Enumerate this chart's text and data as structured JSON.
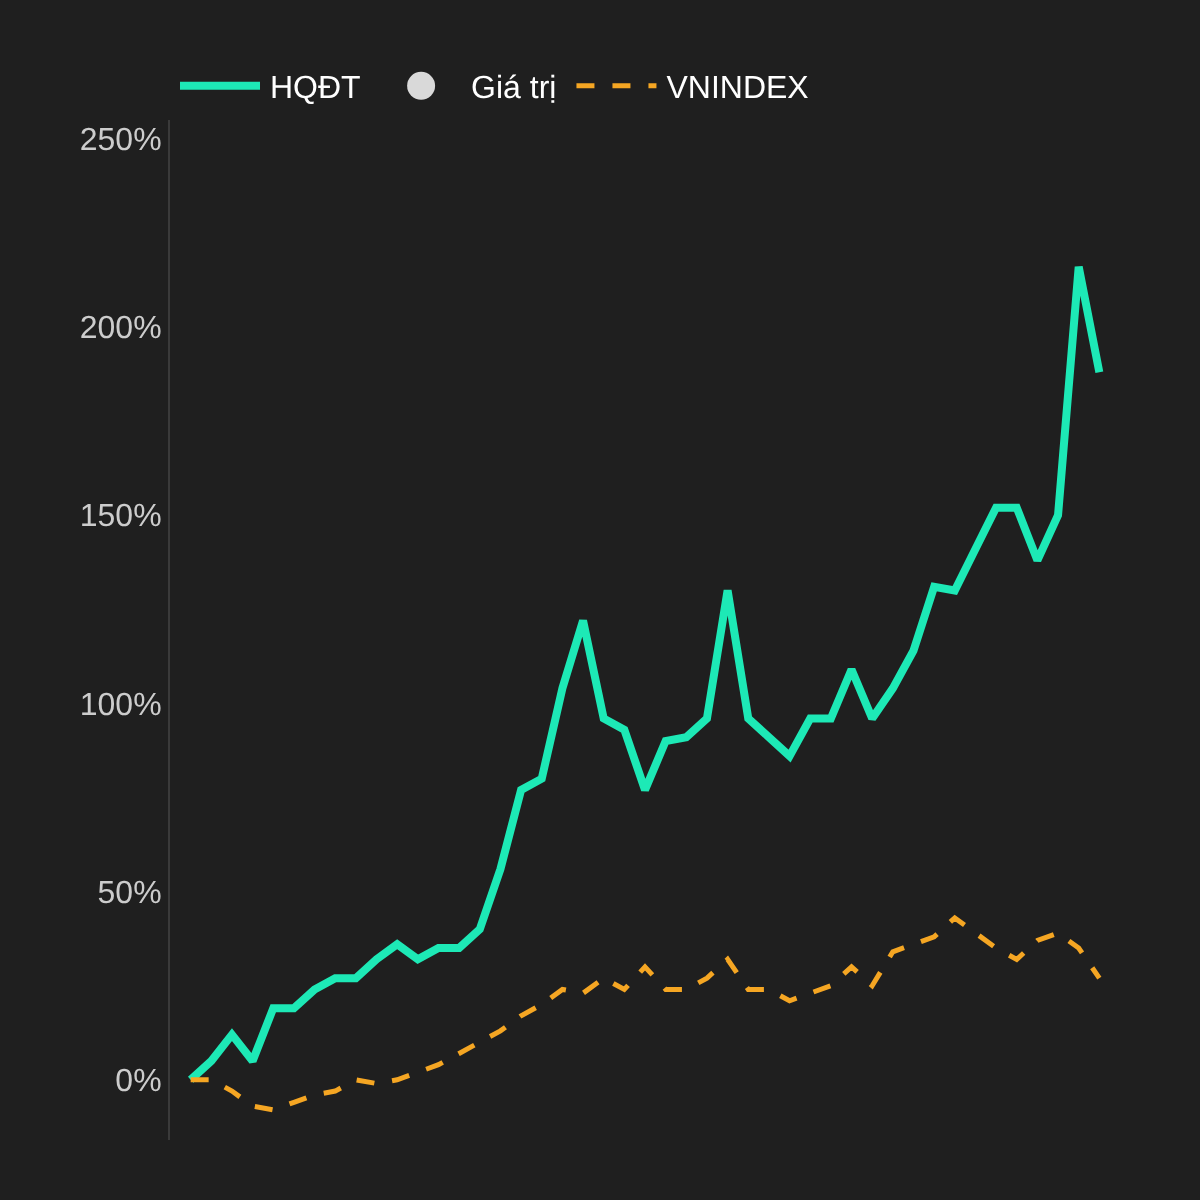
{
  "chart_data": {
    "type": "line",
    "categories": [
      null,
      null,
      null,
      null,
      null,
      null,
      null,
      null,
      null,
      null,
      null,
      null,
      null,
      null,
      null,
      null,
      null,
      null,
      null,
      null,
      null,
      null,
      null,
      null,
      null,
      null,
      null,
      null,
      null,
      null,
      null,
      null,
      null,
      null,
      null,
      null,
      null,
      null,
      null,
      null,
      null,
      null,
      null,
      null,
      null
    ],
    "series": [
      {
        "name": "HQĐT",
        "color": "#1de9b6",
        "line_style": "solid",
        "values": [
          0,
          5,
          12,
          5,
          19,
          19,
          24,
          27,
          27,
          32,
          36,
          32,
          35,
          35,
          40,
          56,
          77,
          80,
          104,
          122,
          96,
          93,
          77,
          90,
          91,
          96,
          130,
          96,
          91,
          86,
          96,
          96,
          109,
          96,
          104,
          114,
          131,
          130,
          141,
          152,
          152,
          138,
          150,
          216,
          188
        ]
      },
      {
        "name": "Giá trị",
        "type": "scatter",
        "marker": "circle",
        "color": "#d9d9d9",
        "values": [
          null,
          null,
          null,
          null,
          null,
          null,
          null,
          null,
          null,
          null,
          null,
          null,
          null,
          null,
          null,
          null,
          null,
          null,
          null,
          null,
          null,
          null,
          null,
          null,
          null,
          null,
          null,
          null,
          null,
          null,
          null,
          null,
          null,
          null,
          null,
          null,
          null,
          null,
          null,
          null,
          null,
          null,
          null,
          null,
          null
        ]
      },
      {
        "name": "VNINDEX",
        "color": "#f5a623",
        "line_style": "dashed",
        "values": [
          0,
          0,
          -3,
          -7,
          -8,
          -6,
          -4,
          -3,
          0,
          -1,
          0,
          2,
          4,
          7,
          10,
          13,
          17,
          20,
          24,
          23,
          27,
          24,
          30,
          24,
          24,
          27,
          32,
          24,
          24,
          21,
          23,
          25,
          30,
          25,
          34,
          36,
          38,
          43,
          39,
          35,
          32,
          37,
          39,
          35,
          27
        ]
      }
    ],
    "ylim": [
      -16,
      255
    ],
    "yticks": [
      {
        "value": 0,
        "label": "0%"
      },
      {
        "value": 50,
        "label": "50%"
      },
      {
        "value": 100,
        "label": "100%"
      },
      {
        "value": 150,
        "label": "150%"
      },
      {
        "value": 200,
        "label": "200%"
      },
      {
        "value": 250,
        "label": "250%"
      }
    ],
    "tick_labels": "y",
    "grid": false,
    "legend": "top left"
  }
}
